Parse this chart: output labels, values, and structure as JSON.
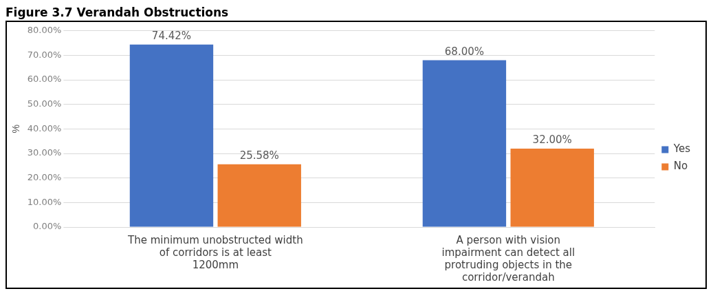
{
  "chart_data": {
    "type": "bar",
    "title": "Figure 3.7 Verandah Obstructions",
    "ylabel": "%",
    "categories": [
      "The minimum unobstructed width of corridors is at least 1200mm",
      "A person with vision impairment can detect all protruding objects in the corridor/verandah"
    ],
    "series": [
      {
        "name": "Yes",
        "color": "#4472c4",
        "values": [
          74.42,
          68.0
        ],
        "value_labels": [
          "74.42%",
          "68.00%"
        ]
      },
      {
        "name": "No",
        "color": "#ed7d31",
        "values": [
          25.58,
          32.0
        ],
        "value_labels": [
          "25.58%",
          "32.00%"
        ]
      }
    ],
    "ylim": [
      0,
      80
    ],
    "yticks": [
      {
        "value": 0,
        "label": "0.00%"
      },
      {
        "value": 10,
        "label": "10.00%"
      },
      {
        "value": 20,
        "label": "20.00%"
      },
      {
        "value": 30,
        "label": "30.00%"
      },
      {
        "value": 40,
        "label": "40.00%"
      },
      {
        "value": 50,
        "label": "50.00%"
      },
      {
        "value": 60,
        "label": "60.00%"
      },
      {
        "value": 70,
        "label": "70.00%"
      },
      {
        "value": 80,
        "label": "80.00%"
      }
    ],
    "grid": "y",
    "legend": "right"
  }
}
